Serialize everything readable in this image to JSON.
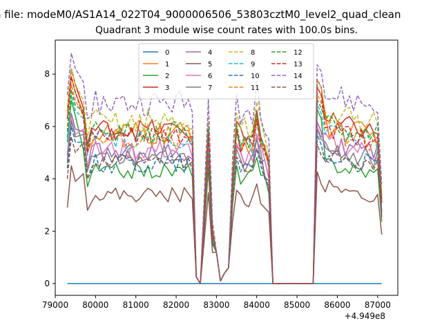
{
  "suptitle": "n file: modeM0/AS1A14_022T04_9000006506_53803cztM0_level2_quad_clean",
  "chart_data": {
    "type": "line",
    "title": "Quadrant 3 module wise count rates with 100.0s bins.",
    "xlabel": "",
    "ylabel": "",
    "x_offset_label": "+4.949e8",
    "xlim": [
      79000,
      87500
    ],
    "ylim": [
      -0.45,
      9.3
    ],
    "xticks": [
      79000,
      80000,
      81000,
      82000,
      83000,
      84000,
      85000,
      86000,
      87000
    ],
    "yticks": [
      0,
      2,
      4,
      6,
      8
    ],
    "grid": false,
    "legend_position": "top-center",
    "legend_columns": 4,
    "x_segments": [
      [
        79300,
        82500
      ],
      [
        82500,
        83100
      ],
      [
        83100,
        84400
      ],
      [
        84400,
        85400
      ],
      [
        85400,
        87100
      ]
    ],
    "series": [
      {
        "name": "0",
        "color": "#1f77b4",
        "dash": "solid",
        "flat": 0.0
      },
      {
        "name": "1",
        "color": "#ff7f0e",
        "dash": "solid",
        "base": 5.7,
        "peak": 7.9,
        "amp": 0.5
      },
      {
        "name": "2",
        "color": "#2ca02c",
        "dash": "solid",
        "base": 4.3,
        "peak": 7.0,
        "amp": 0.3
      },
      {
        "name": "3",
        "color": "#d62728",
        "dash": "solid",
        "base": 5.9,
        "peak": 8.2,
        "amp": 0.4
      },
      {
        "name": "4",
        "color": "#9467bd",
        "dash": "solid",
        "base": 5.0,
        "peak": 6.5,
        "amp": 0.4
      },
      {
        "name": "5",
        "color": "#8c564b",
        "dash": "solid",
        "base": 3.4,
        "peak": 4.5,
        "amp": 0.3
      },
      {
        "name": "6",
        "color": "#e377c2",
        "dash": "solid",
        "base": 5.1,
        "peak": 6.3,
        "amp": 0.4
      },
      {
        "name": "7",
        "color": "#7f7f7f",
        "dash": "solid",
        "base": 4.9,
        "peak": 6.2,
        "amp": 0.4
      },
      {
        "name": "8",
        "color": "#bcbd22",
        "dash": "dashed",
        "base": 6.2,
        "peak": 8.2,
        "amp": 0.5
      },
      {
        "name": "9",
        "color": "#17becf",
        "dash": "dashed",
        "base": 5.5,
        "peak": 7.2,
        "amp": 0.4
      },
      {
        "name": "10",
        "color": "#1f77b4",
        "dash": "dashed",
        "base": 4.6,
        "peak": 6.0,
        "amp": 0.4
      },
      {
        "name": "11",
        "color": "#ff7f0e",
        "dash": "dashed",
        "base": 5.6,
        "peak": 7.6,
        "amp": 0.5
      },
      {
        "name": "12",
        "color": "#2ca02c",
        "dash": "dashed",
        "base": 5.8,
        "peak": 7.4,
        "amp": 0.4
      },
      {
        "name": "13",
        "color": "#d62728",
        "dash": "dashed",
        "base": 5.6,
        "peak": 7.9,
        "amp": 0.4
      },
      {
        "name": "14",
        "color": "#9467bd",
        "dash": "dashed",
        "base": 6.9,
        "peak": 8.8,
        "amp": 0.5
      },
      {
        "name": "15",
        "color": "#8c564b",
        "dash": "dashed",
        "base": 4.6,
        "peak": 5.6,
        "amp": 0.3
      }
    ]
  }
}
